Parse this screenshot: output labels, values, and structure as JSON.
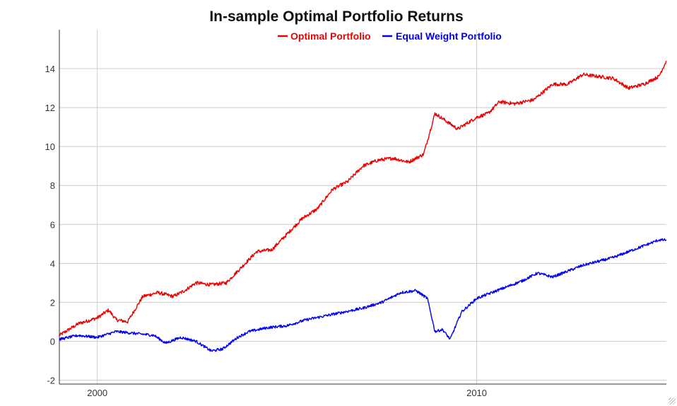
{
  "chart_data": {
    "type": "line",
    "title": "In-sample Optimal Portfolio Returns",
    "xlabel": "",
    "ylabel": "",
    "xlim": [
      1999.0,
      2015.0
    ],
    "ylim": [
      -2.2,
      16.0
    ],
    "x_ticks": [
      2000,
      2010
    ],
    "y_ticks": [
      -2,
      0,
      2,
      4,
      6,
      8,
      10,
      12,
      14
    ],
    "grid": true,
    "legend_position": "top-center",
    "series": [
      {
        "name": "Optimal Portfolio",
        "color": "#ee0000",
        "x": [
          1999.0,
          1999.5,
          2000.0,
          2000.3,
          2000.5,
          2000.8,
          2001.2,
          2001.6,
          2002.0,
          2002.3,
          2002.6,
          2003.0,
          2003.4,
          2003.8,
          2004.2,
          2004.6,
          2005.0,
          2005.4,
          2005.8,
          2006.2,
          2006.6,
          2007.0,
          2007.4,
          2007.8,
          2008.2,
          2008.6,
          2008.9,
          2009.2,
          2009.5,
          2010.0,
          2010.3,
          2010.6,
          2011.0,
          2011.5,
          2012.0,
          2012.4,
          2012.8,
          2013.2,
          2013.6,
          2014.0,
          2014.4,
          2014.8,
          2015.0
        ],
        "values": [
          0.3,
          0.9,
          1.2,
          1.6,
          1.1,
          1.0,
          2.3,
          2.5,
          2.3,
          2.6,
          3.0,
          2.9,
          3.0,
          3.8,
          4.6,
          4.7,
          5.5,
          6.3,
          6.8,
          7.8,
          8.2,
          9.0,
          9.3,
          9.4,
          9.2,
          9.6,
          11.7,
          11.3,
          10.9,
          11.5,
          11.7,
          12.3,
          12.2,
          12.4,
          13.2,
          13.2,
          13.7,
          13.6,
          13.5,
          13.0,
          13.2,
          13.6,
          14.4
        ]
      },
      {
        "name": "Equal Weight Portfolio",
        "color": "#0000ee",
        "x": [
          1999.0,
          1999.5,
          2000.0,
          2000.5,
          2001.0,
          2001.5,
          2001.8,
          2002.2,
          2002.6,
          2003.0,
          2003.3,
          2003.7,
          2004.0,
          2004.5,
          2005.0,
          2005.5,
          2006.0,
          2006.5,
          2007.0,
          2007.5,
          2008.0,
          2008.4,
          2008.7,
          2008.9,
          2009.1,
          2009.3,
          2009.6,
          2010.0,
          2010.4,
          2010.8,
          2011.2,
          2011.6,
          2012.0,
          2012.4,
          2012.8,
          2013.2,
          2013.6,
          2014.0,
          2014.4,
          2014.8,
          2015.0
        ],
        "values": [
          0.1,
          0.3,
          0.2,
          0.5,
          0.4,
          0.3,
          -0.1,
          0.2,
          0.0,
          -0.5,
          -0.4,
          0.2,
          0.5,
          0.7,
          0.8,
          1.1,
          1.3,
          1.5,
          1.7,
          2.0,
          2.5,
          2.6,
          2.2,
          0.5,
          0.6,
          0.1,
          1.5,
          2.2,
          2.5,
          2.8,
          3.1,
          3.5,
          3.3,
          3.6,
          3.9,
          4.1,
          4.3,
          4.6,
          4.9,
          5.2,
          5.2
        ]
      }
    ]
  }
}
